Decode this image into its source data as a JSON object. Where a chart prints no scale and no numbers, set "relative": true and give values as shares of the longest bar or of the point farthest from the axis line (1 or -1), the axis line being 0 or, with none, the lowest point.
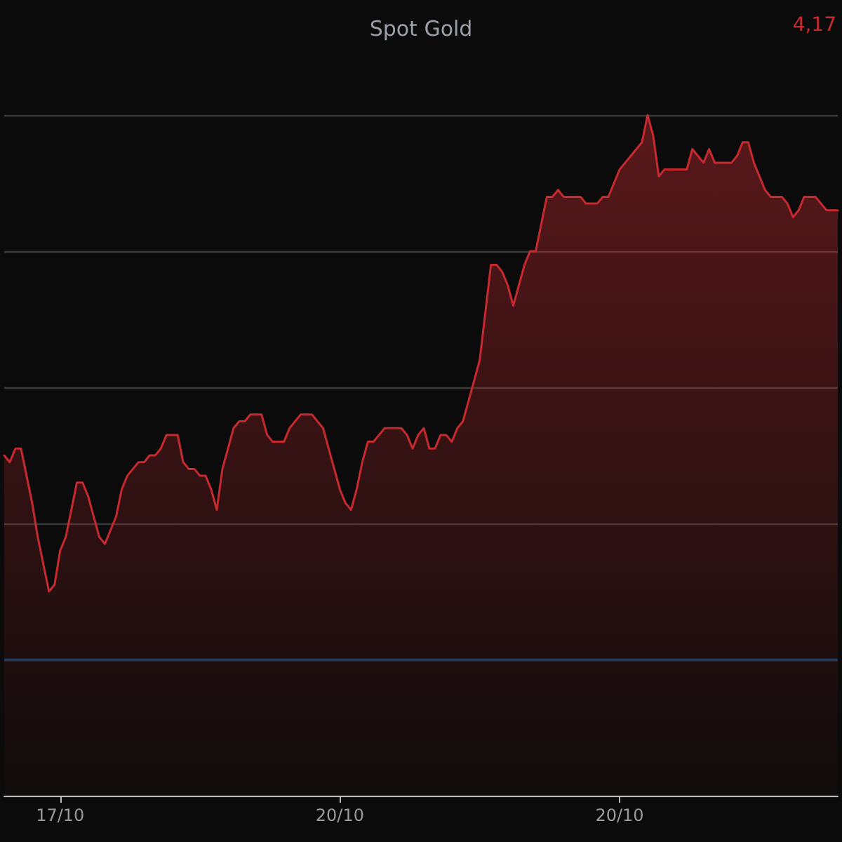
{
  "chart_data": {
    "type": "area",
    "title": "Spot Gold",
    "annotations": [
      "4,17"
    ],
    "relative": true,
    "grid": "y",
    "marker": "none",
    "line_style": "solid",
    "categories": [
      null,
      null,
      null,
      null,
      null,
      null,
      null,
      null,
      null,
      null,
      "17/10",
      null,
      null,
      null,
      null,
      null,
      null,
      null,
      null,
      null,
      null,
      null,
      null,
      null,
      null,
      null,
      null,
      null,
      null,
      null,
      null,
      null,
      null,
      null,
      null,
      null,
      null,
      null,
      null,
      null,
      null,
      null,
      null,
      null,
      null,
      null,
      null,
      null,
      null,
      null,
      null,
      null,
      null,
      null,
      null,
      null,
      null,
      null,
      null,
      null,
      "20/10",
      null,
      null,
      null,
      null,
      null,
      null,
      null,
      null,
      null,
      null,
      null,
      null,
      null,
      null,
      null,
      null,
      null,
      null,
      null,
      null,
      null,
      null,
      null,
      null,
      null,
      null,
      null,
      null,
      null,
      null,
      null,
      null,
      null,
      null,
      null,
      null,
      null,
      null,
      null,
      null,
      null,
      null,
      null,
      null,
      null,
      null,
      null,
      null,
      null,
      "20/10",
      null,
      null,
      null,
      null,
      null,
      null,
      null,
      null,
      null,
      null,
      null,
      null,
      null,
      null,
      null,
      null,
      null,
      null,
      null,
      null,
      null,
      null,
      null,
      null,
      null,
      null,
      null,
      null,
      null,
      null,
      null,
      null,
      null,
      null,
      null,
      null,
      null,
      null,
      null
    ],
    "series": [
      {
        "color": "#c62a2f",
        "values": [
          0.5,
          0.49,
          0.51,
          0.51,
          0.47,
          0.43,
          0.38,
          0.34,
          0.3,
          0.31,
          0.36,
          0.38,
          0.42,
          0.46,
          0.46,
          0.44,
          0.41,
          0.38,
          0.37,
          0.39,
          0.41,
          0.45,
          0.47,
          0.48,
          0.49,
          0.49,
          0.5,
          0.5,
          0.51,
          0.53,
          0.53,
          0.53,
          0.49,
          0.48,
          0.48,
          0.47,
          0.47,
          0.45,
          0.42,
          0.48,
          0.51,
          0.54,
          0.55,
          0.55,
          0.56,
          0.56,
          0.56,
          0.53,
          0.52,
          0.52,
          0.52,
          0.54,
          0.55,
          0.56,
          0.56,
          0.56,
          0.55,
          0.54,
          0.51,
          0.48,
          0.45,
          0.43,
          0.42,
          0.45,
          0.49,
          0.52,
          0.52,
          0.53,
          0.54,
          0.54,
          0.54,
          0.54,
          0.53,
          0.51,
          0.53,
          0.54,
          0.51,
          0.51,
          0.53,
          0.53,
          0.52,
          0.54,
          0.55,
          0.58,
          0.61,
          0.64,
          0.71,
          0.78,
          0.78,
          0.77,
          0.75,
          0.72,
          0.75,
          0.78,
          0.8,
          0.8,
          0.84,
          0.88,
          0.88,
          0.89,
          0.88,
          0.88,
          0.88,
          0.88,
          0.87,
          0.87,
          0.87,
          0.88,
          0.88,
          0.9,
          0.92,
          0.93,
          0.94,
          0.95,
          0.96,
          1.0,
          0.97,
          0.91,
          0.92,
          0.92,
          0.92,
          0.92,
          0.92,
          0.95,
          0.94,
          0.93,
          0.95,
          0.93,
          0.93,
          0.93,
          0.93,
          0.94,
          0.96,
          0.96,
          0.93,
          0.91,
          0.89,
          0.88,
          0.88,
          0.88,
          0.87,
          0.85,
          0.86,
          0.88,
          0.88,
          0.88,
          0.87,
          0.86,
          0.86,
          0.86
        ]
      }
    ],
    "ref_lines": [
      {
        "axis": "y",
        "value": 0.2,
        "color": "#1d3b63"
      }
    ]
  }
}
